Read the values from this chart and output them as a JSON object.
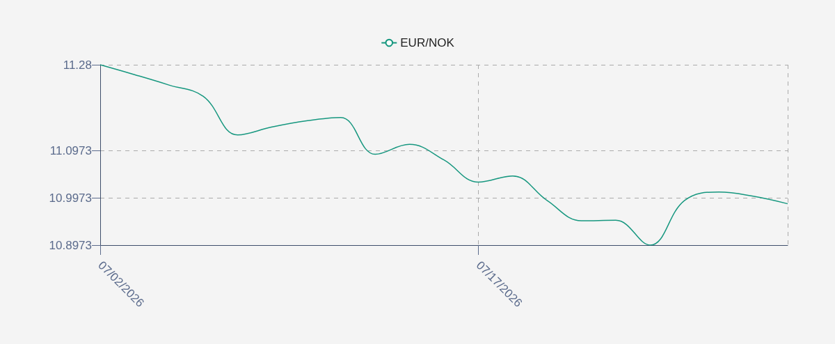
{
  "chart_data": {
    "type": "line",
    "categories": [
      "07/02/2026",
      null,
      null,
      null,
      null,
      null,
      null,
      null,
      null,
      null,
      null,
      "07/17/2026",
      null,
      null,
      null,
      null,
      null,
      null,
      null,
      null,
      null
    ],
    "series": [
      {
        "name": "EUR/NOK",
        "color": "#16977f",
        "values": [
          11.28,
          11.259,
          11.237,
          11.213,
          11.131,
          11.148,
          11.161,
          11.168,
          11.09,
          11.111,
          11.078,
          11.031,
          11.044,
          10.992,
          10.949,
          10.95,
          10.8973,
          10.992,
          11.01,
          11.001,
          10.985
        ]
      }
    ],
    "ylim": [
      10.8973,
      11.28
    ],
    "yticks": [
      10.8973,
      10.9973,
      11.0973,
      11.28
    ],
    "grid": true,
    "legend": "top",
    "marker": "none",
    "line_style": "solid"
  }
}
